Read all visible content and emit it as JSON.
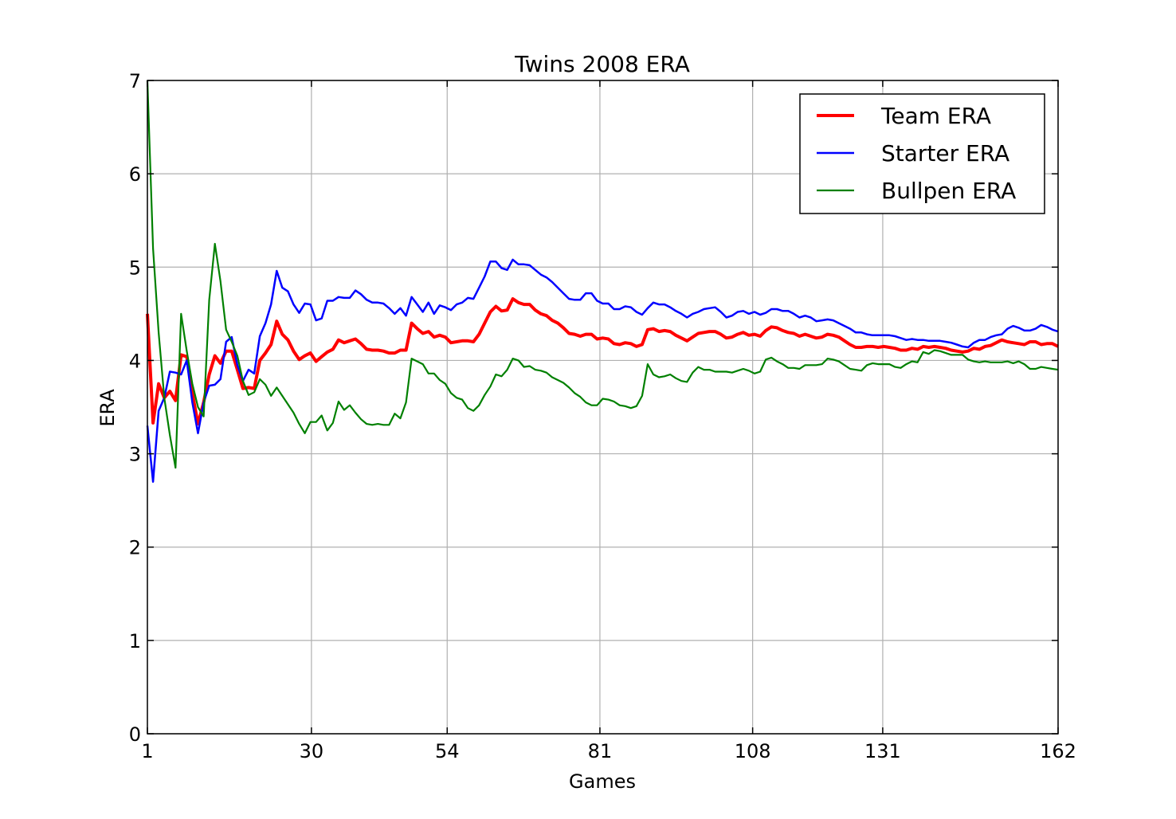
{
  "chart_data": {
    "type": "line",
    "title": "Twins 2008 ERA",
    "xlabel": "Games",
    "ylabel": "ERA",
    "xlim": [
      1,
      162
    ],
    "ylim": [
      0,
      7
    ],
    "xticks": [
      1,
      30,
      54,
      81,
      108,
      131,
      162
    ],
    "yticks": [
      0,
      1,
      2,
      3,
      4,
      5,
      6,
      7
    ],
    "grid": true,
    "legend_position": "top-right",
    "series": [
      {
        "name": "Team ERA",
        "color": "#ff0000",
        "values": [
          4.5,
          3.33,
          3.75,
          3.6,
          3.67,
          3.57,
          4.06,
          4.04,
          3.65,
          3.32,
          3.55,
          3.85,
          4.05,
          3.97,
          4.1,
          4.1,
          3.9,
          3.7,
          3.71,
          3.7,
          4.0,
          4.08,
          4.17,
          4.42,
          4.28,
          4.22,
          4.1,
          4.01,
          4.05,
          4.08,
          3.99,
          4.04,
          4.09,
          4.12,
          4.22,
          4.19,
          4.21,
          4.23,
          4.18,
          4.12,
          4.11,
          4.11,
          4.1,
          4.08,
          4.08,
          4.11,
          4.11,
          4.4,
          4.34,
          4.29,
          4.31,
          4.25,
          4.27,
          4.25,
          4.19,
          4.2,
          4.21,
          4.21,
          4.2,
          4.28,
          4.4,
          4.52,
          4.58,
          4.53,
          4.54,
          4.66,
          4.62,
          4.6,
          4.6,
          4.54,
          4.5,
          4.48,
          4.43,
          4.4,
          4.35,
          4.29,
          4.28,
          4.26,
          4.28,
          4.28,
          4.23,
          4.24,
          4.23,
          4.18,
          4.17,
          4.19,
          4.18,
          4.15,
          4.17,
          4.33,
          4.34,
          4.31,
          4.32,
          4.31,
          4.27,
          4.24,
          4.21,
          4.25,
          4.29,
          4.3,
          4.31,
          4.31,
          4.28,
          4.24,
          4.25,
          4.28,
          4.3,
          4.27,
          4.28,
          4.26,
          4.32,
          4.36,
          4.35,
          4.32,
          4.3,
          4.29,
          4.26,
          4.28,
          4.26,
          4.24,
          4.25,
          4.28,
          4.27,
          4.25,
          4.21,
          4.17,
          4.14,
          4.14,
          4.15,
          4.15,
          4.14,
          4.15,
          4.14,
          4.13,
          4.11,
          4.11,
          4.13,
          4.12,
          4.15,
          4.14,
          4.15,
          4.14,
          4.13,
          4.11,
          4.1,
          4.09,
          4.1,
          4.13,
          4.12,
          4.15,
          4.16,
          4.19,
          4.22,
          4.2,
          4.19,
          4.18,
          4.17,
          4.2,
          4.2,
          4.17,
          4.18,
          4.18,
          4.15
        ]
      },
      {
        "name": "Starter ERA",
        "color": "#0000ff",
        "values": [
          3.3,
          2.7,
          3.46,
          3.6,
          3.88,
          3.87,
          3.85,
          4.0,
          3.55,
          3.22,
          3.55,
          3.73,
          3.74,
          3.8,
          4.2,
          4.25,
          3.95,
          3.78,
          3.9,
          3.86,
          4.26,
          4.4,
          4.6,
          4.96,
          4.78,
          4.74,
          4.6,
          4.51,
          4.61,
          4.6,
          4.43,
          4.45,
          4.64,
          4.64,
          4.68,
          4.67,
          4.67,
          4.75,
          4.71,
          4.65,
          4.62,
          4.62,
          4.61,
          4.56,
          4.5,
          4.56,
          4.48,
          4.68,
          4.6,
          4.52,
          4.62,
          4.5,
          4.59,
          4.57,
          4.54,
          4.6,
          4.62,
          4.67,
          4.66,
          4.78,
          4.9,
          5.06,
          5.06,
          4.99,
          4.97,
          5.08,
          5.03,
          5.03,
          5.02,
          4.97,
          4.92,
          4.89,
          4.84,
          4.78,
          4.72,
          4.66,
          4.65,
          4.65,
          4.72,
          4.72,
          4.64,
          4.61,
          4.61,
          4.55,
          4.55,
          4.58,
          4.57,
          4.52,
          4.49,
          4.56,
          4.62,
          4.6,
          4.6,
          4.57,
          4.53,
          4.5,
          4.46,
          4.5,
          4.52,
          4.55,
          4.56,
          4.57,
          4.52,
          4.46,
          4.48,
          4.52,
          4.53,
          4.5,
          4.52,
          4.49,
          4.51,
          4.55,
          4.55,
          4.53,
          4.53,
          4.5,
          4.46,
          4.48,
          4.46,
          4.42,
          4.43,
          4.44,
          4.43,
          4.4,
          4.37,
          4.34,
          4.3,
          4.3,
          4.28,
          4.27,
          4.27,
          4.27,
          4.27,
          4.26,
          4.24,
          4.22,
          4.23,
          4.22,
          4.22,
          4.21,
          4.21,
          4.21,
          4.2,
          4.19,
          4.17,
          4.15,
          4.14,
          4.19,
          4.22,
          4.22,
          4.25,
          4.27,
          4.28,
          4.34,
          4.37,
          4.35,
          4.32,
          4.32,
          4.34,
          4.38,
          4.36,
          4.33,
          4.31
        ]
      },
      {
        "name": "Bullpen ERA",
        "color": "#008000",
        "values": [
          7.0,
          5.2,
          4.3,
          3.6,
          3.2,
          2.85,
          4.5,
          4.1,
          3.75,
          3.5,
          3.4,
          4.65,
          5.25,
          4.85,
          4.33,
          4.2,
          4.05,
          3.78,
          3.63,
          3.66,
          3.8,
          3.74,
          3.62,
          3.71,
          3.62,
          3.53,
          3.44,
          3.32,
          3.22,
          3.34,
          3.34,
          3.41,
          3.25,
          3.33,
          3.56,
          3.47,
          3.52,
          3.44,
          3.37,
          3.32,
          3.31,
          3.32,
          3.31,
          3.31,
          3.43,
          3.38,
          3.55,
          4.02,
          3.99,
          3.96,
          3.86,
          3.86,
          3.79,
          3.75,
          3.65,
          3.6,
          3.58,
          3.49,
          3.46,
          3.52,
          3.63,
          3.72,
          3.85,
          3.83,
          3.9,
          4.02,
          4.0,
          3.93,
          3.94,
          3.9,
          3.89,
          3.87,
          3.82,
          3.79,
          3.76,
          3.71,
          3.65,
          3.61,
          3.55,
          3.52,
          3.52,
          3.59,
          3.58,
          3.56,
          3.52,
          3.51,
          3.49,
          3.51,
          3.62,
          3.96,
          3.85,
          3.82,
          3.83,
          3.85,
          3.81,
          3.78,
          3.77,
          3.87,
          3.93,
          3.9,
          3.9,
          3.88,
          3.88,
          3.88,
          3.87,
          3.89,
          3.91,
          3.89,
          3.86,
          3.88,
          4.01,
          4.03,
          3.99,
          3.96,
          3.92,
          3.92,
          3.91,
          3.95,
          3.95,
          3.95,
          3.96,
          4.02,
          4.01,
          3.99,
          3.95,
          3.91,
          3.9,
          3.89,
          3.95,
          3.97,
          3.96,
          3.96,
          3.96,
          3.93,
          3.92,
          3.96,
          3.99,
          3.98,
          4.09,
          4.07,
          4.11,
          4.1,
          4.08,
          4.06,
          4.06,
          4.06,
          4.01,
          3.99,
          3.98,
          3.99,
          3.98,
          3.98,
          3.98,
          3.99,
          3.97,
          3.99,
          3.96,
          3.91,
          3.91,
          3.93,
          3.92,
          3.91,
          3.9
        ]
      }
    ]
  }
}
